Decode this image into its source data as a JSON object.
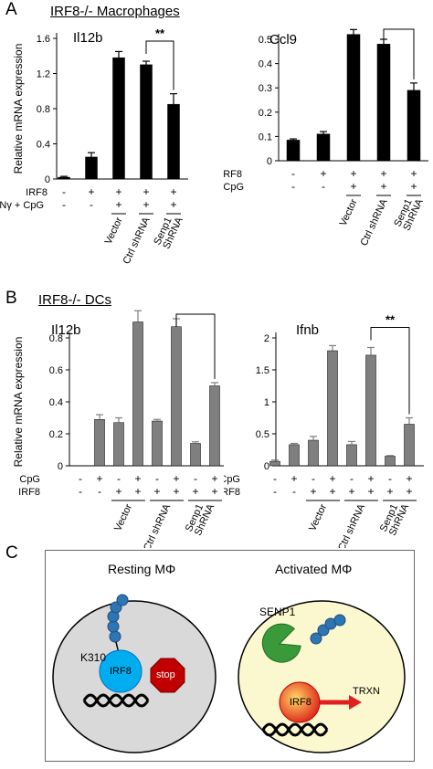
{
  "panelA": {
    "letter": "A",
    "title": "IRF8-/- Macrophages"
  },
  "panelB": {
    "letter": "B",
    "title": "IRF8-/- DCs"
  },
  "panelC": {
    "letter": "C",
    "resting": {
      "title": "Resting MΦ",
      "k_label": "K310",
      "irf8": "IRF8",
      "stop": "stop"
    },
    "activated": {
      "title": "Activated MΦ",
      "senp1": "SENP1",
      "irf8": "IRF8",
      "trxn": "TRXN"
    }
  },
  "y_axis_label": "Relative mRNA expression",
  "significance": "**",
  "colors": {
    "macro": "#000000",
    "dc": "#7f7f7f",
    "resting_cell": "#d9d9d9",
    "activated_cell": "#fbf8cf"
  },
  "row_labels": {
    "irf8": "IRF8",
    "ifn": "IFNγ + CpG",
    "cpg": "CpG"
  },
  "groups_A": [
    "Vector",
    "Ctrl shRNA",
    "Senp1\nShRNA"
  ],
  "groups_B": [
    "Vector",
    "Ctrl shRNA",
    "Senp1\nShRNA"
  ],
  "chart_data": [
    {
      "type": "bar",
      "title": "Il12b",
      "ylabel": "Relative mRNA expression",
      "ylim": [
        0,
        1.6
      ],
      "yticks": [
        "0",
        "0.4",
        "0.8",
        "1.2",
        "1.6"
      ],
      "values": [
        0.02,
        0.25,
        1.38,
        1.3,
        0.85
      ],
      "errors": [
        0.01,
        0.05,
        0.07,
        0.04,
        0.12
      ],
      "irf8": [
        "-",
        "+",
        "+",
        "+",
        "+"
      ],
      "ifn_cpg": [
        "-",
        "-",
        "+",
        "+",
        "+"
      ],
      "significance": {
        "between": [
          3,
          4
        ],
        "label": "**"
      }
    },
    {
      "type": "bar",
      "title": "Ccl9",
      "ylabel": "",
      "ylim": [
        0,
        0.5
      ],
      "yticks": [
        "0",
        "0.1",
        "0.2",
        "0.3",
        "0.4",
        "0.5"
      ],
      "values": [
        0.085,
        0.11,
        0.52,
        0.48,
        0.29
      ],
      "errors": [
        0.005,
        0.01,
        0.02,
        0.02,
        0.03
      ],
      "irf8": [
        "-",
        "+",
        "+",
        "+",
        "+"
      ],
      "ifn_cpg": [
        "-",
        "-",
        "+",
        "+",
        "+"
      ],
      "significance": {
        "between": [
          3,
          4
        ],
        "label": "**"
      }
    },
    {
      "type": "bar",
      "title": "Il12b",
      "ylabel": "Relative mRNA expression",
      "ylim": [
        0,
        0.8
      ],
      "yticks": [
        "0",
        "0.2",
        "0.4",
        "0.6",
        "0.8"
      ],
      "values": [
        0,
        0.29,
        0.27,
        0.9,
        0.28,
        0.87,
        0.14,
        0.5
      ],
      "errors": [
        0,
        0.03,
        0.03,
        0.07,
        0.01,
        0.05,
        0.01,
        0.02
      ],
      "cpg": [
        "-",
        "+",
        "-",
        "+",
        "-",
        "+",
        "-",
        "+"
      ],
      "irf8": [
        "-",
        "-",
        "+",
        "+",
        "+",
        "+",
        "+",
        "+"
      ],
      "significance": {
        "between": [
          5,
          7
        ],
        "label": "**"
      }
    },
    {
      "type": "bar",
      "title": "Ifnb",
      "ylabel": "",
      "ylim": [
        0,
        2
      ],
      "yticks": [
        "0",
        "0.5",
        "1",
        "1.5",
        "2"
      ],
      "values": [
        0.07,
        0.33,
        0.4,
        1.8,
        0.33,
        1.73,
        0.15,
        0.65
      ],
      "errors": [
        0.02,
        0.02,
        0.06,
        0.08,
        0.05,
        0.12,
        0.01,
        0.1
      ],
      "cpg": [
        "-",
        "+",
        "-",
        "+",
        "-",
        "+",
        "-",
        "+"
      ],
      "irf8": [
        "-",
        "-",
        "+",
        "+",
        "+",
        "+",
        "+",
        "+"
      ],
      "significance": {
        "between": [
          5,
          7
        ],
        "label": "**"
      }
    }
  ]
}
